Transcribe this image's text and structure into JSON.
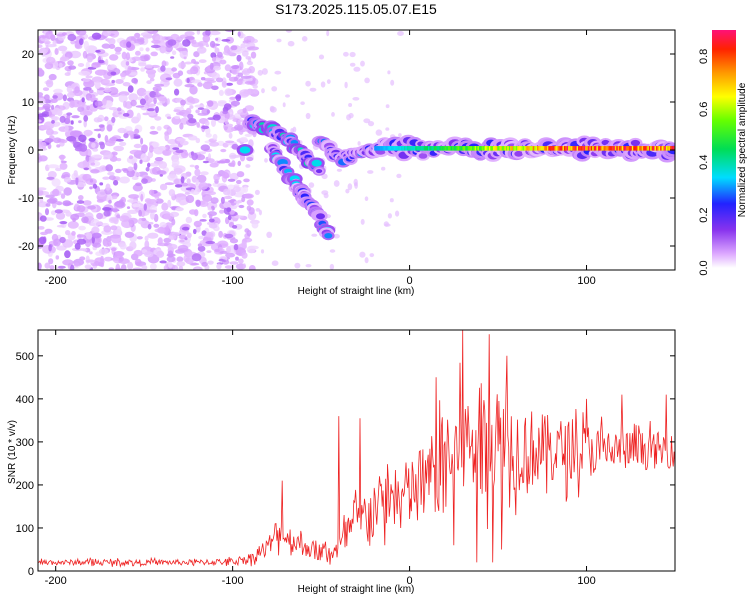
{
  "title": "S173.2025.115.05.07.E15",
  "colors": {
    "snr_line": "#ee2222",
    "scatter_low": "#cc99ff",
    "scatter_high": "#6600cc"
  },
  "chart_data": [
    {
      "type": "heatmap",
      "xlabel": "Height of straight line (km)",
      "ylabel": "Frequency (Hz)",
      "xlim": [
        -210,
        150
      ],
      "ylim": [
        -25,
        25
      ],
      "xticks": [
        -200,
        -100,
        0,
        100
      ],
      "xtick_labels": [
        "-200",
        "-100",
        "0",
        "100"
      ],
      "yticks": [
        -20,
        -10,
        0,
        10,
        20
      ],
      "ytick_labels": [
        "-20",
        "-10",
        "0",
        "10",
        "20"
      ],
      "colorbar": {
        "label": "Normalized spectral amplitude",
        "range": [
          0,
          0.9
        ],
        "ticks": [
          0,
          0.2,
          0.4,
          0.6,
          0.8
        ],
        "tick_labels": [
          "0.0",
          "0.2",
          "0.4",
          "0.6",
          "0.8"
        ]
      },
      "noise_region": {
        "x": [
          -210,
          -95
        ],
        "y": [
          -25,
          25
        ],
        "amplitude": [
          0.03,
          0.12
        ]
      },
      "features": [
        {
          "type": "blob",
          "x": -93,
          "y": 0,
          "amplitude": 0.35
        },
        {
          "type": "streak",
          "points": [
            [
              -90,
              5.5
            ],
            [
              -80,
              4.5
            ],
            [
              -70,
              2.5
            ],
            [
              -60,
              -1
            ],
            [
              -50,
              -4
            ]
          ],
          "amplitude": [
            0.15,
            0.4
          ]
        },
        {
          "type": "streak",
          "points": [
            [
              -78,
              1
            ],
            [
              -70,
              -4
            ],
            [
              -63,
              -8
            ],
            [
              -55,
              -12
            ],
            [
              -45,
              -18
            ]
          ],
          "amplitude": [
            0.12,
            0.35
          ]
        },
        {
          "type": "streak",
          "points": [
            [
              -50,
              2
            ],
            [
              -40,
              -2
            ],
            [
              -30,
              -1
            ],
            [
              -20,
              0
            ]
          ],
          "amplitude": [
            0.12,
            0.3
          ]
        },
        {
          "type": "band",
          "x": [
            -20,
            150
          ],
          "y": 0.3,
          "amplitude": [
            0.3,
            0.9
          ]
        }
      ]
    },
    {
      "type": "line",
      "xlabel": "Height of straight line (km)",
      "ylabel": "SNR (10 * v/v)",
      "xlim": [
        -210,
        150
      ],
      "ylim": [
        0,
        560
      ],
      "xticks": [
        -200,
        -100,
        0,
        100
      ],
      "xtick_labels": [
        "-200",
        "-100",
        "0",
        "100"
      ],
      "yticks": [
        0,
        100,
        200,
        300,
        400,
        500
      ],
      "ytick_labels": [
        "0",
        "100",
        "200",
        "300",
        "400",
        "500"
      ],
      "series": [
        {
          "x_step": 0.5,
          "x": [
            -210,
            -200,
            -180,
            -150,
            -120,
            -100,
            -90,
            -80,
            -75,
            -70,
            -60,
            -50,
            -40,
            -35,
            -30,
            -20,
            -10,
            0,
            10,
            20,
            30,
            40,
            50,
            60,
            80,
            100,
            120,
            150
          ],
          "y": [
            20,
            20,
            20,
            20,
            20,
            22,
            30,
            55,
            90,
            80,
            60,
            40,
            50,
            90,
            110,
            150,
            170,
            180,
            210,
            260,
            290,
            300,
            300,
            290,
            280,
            280,
            280,
            280
          ],
          "amplitude": [
            8,
            8,
            8,
            8,
            8,
            10,
            15,
            30,
            45,
            40,
            30,
            25,
            35,
            60,
            70,
            80,
            90,
            100,
            120,
            140,
            160,
            160,
            150,
            130,
            100,
            80,
            60,
            50
          ],
          "peaks": [
            [
              -72,
              210
            ],
            [
              -40,
              360
            ],
            [
              -28,
              355
            ],
            [
              15,
              450
            ],
            [
              30,
              560
            ],
            [
              45,
              550
            ],
            [
              55,
              500
            ],
            [
              100,
              400
            ],
            [
              120,
              410
            ],
            [
              145,
              410
            ]
          ],
          "dips": [
            [
              -5,
              100
            ],
            [
              25,
              60
            ],
            [
              38,
              20
            ],
            [
              47,
              20
            ],
            [
              52,
              50
            ],
            [
              60,
              130
            ]
          ]
        }
      ]
    }
  ]
}
